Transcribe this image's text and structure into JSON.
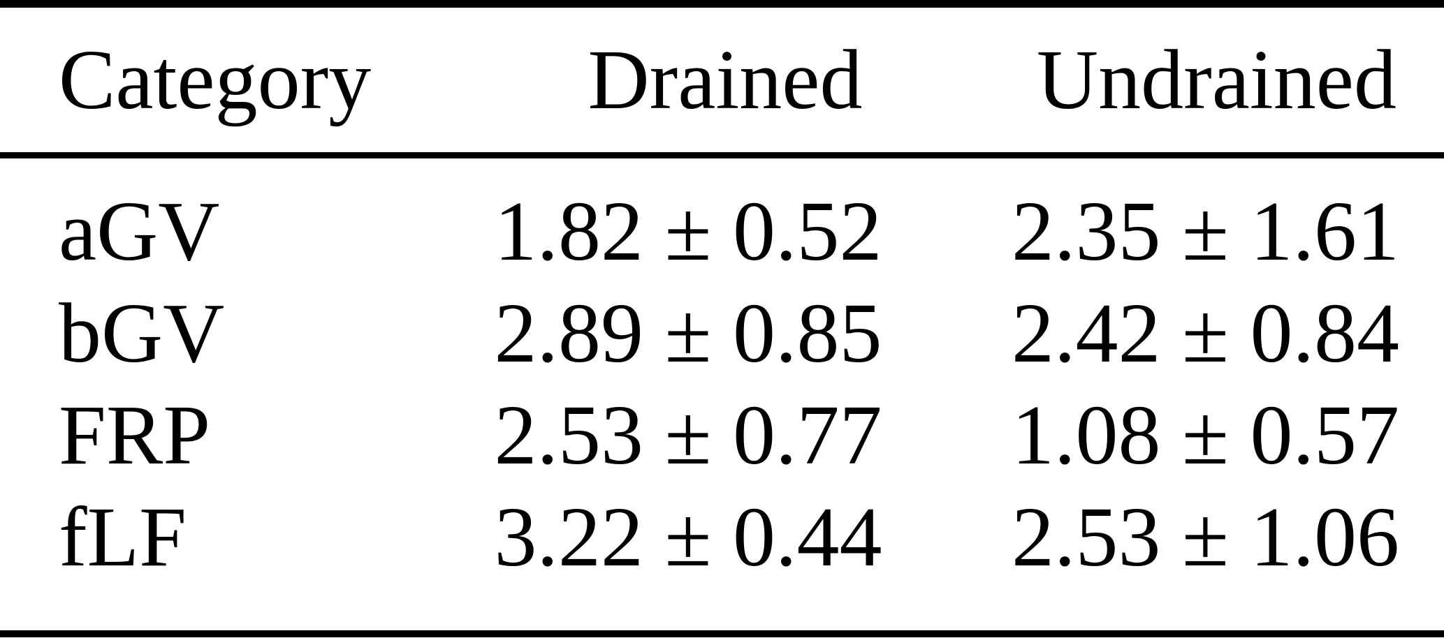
{
  "table": {
    "columns": [
      "Category",
      "Drained",
      "Undrained"
    ],
    "rows": [
      {
        "category": "aGV",
        "drained": "1.82 ± 0.52",
        "undrained": "2.35 ± 1.61"
      },
      {
        "category": "bGV",
        "drained": "2.89 ± 0.85",
        "undrained": "2.42 ± 0.84"
      },
      {
        "category": "FRP",
        "drained": "2.53 ± 0.77",
        "undrained": "1.08 ± 0.57"
      },
      {
        "category": "fLF",
        "drained": "3.22 ± 0.44",
        "undrained": "2.53 ± 1.06"
      }
    ],
    "colors": {
      "text": "#000000",
      "background": "#ffffff",
      "rule": "#000000"
    }
  },
  "chart_data": {
    "type": "table",
    "title": "",
    "categories": [
      "aGV",
      "bGV",
      "FRP",
      "fLF"
    ],
    "series": [
      {
        "name": "Drained",
        "values": [
          1.82,
          2.89,
          2.53,
          3.22
        ],
        "errors": [
          0.52,
          0.85,
          0.77,
          0.44
        ]
      },
      {
        "name": "Undrained",
        "values": [
          2.35,
          2.42,
          1.08,
          2.53
        ],
        "errors": [
          1.61,
          0.84,
          0.57,
          1.06
        ]
      }
    ]
  }
}
